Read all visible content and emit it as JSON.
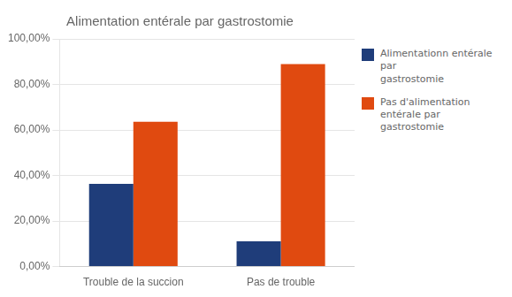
{
  "chart_data": {
    "type": "bar",
    "title": "Alimentation entérale par gastrostomie",
    "categories": [
      "Trouble de la succion",
      "Pas de trouble"
    ],
    "series": [
      {
        "name": "Alimentationn entérale par\ngastrostomie",
        "color": "#1f3d7a",
        "values": [
          0.3636,
          0.1111
        ]
      },
      {
        "name": "Pas d'alimentation\nentérale par gastrostomie",
        "color": "#e04a10",
        "values": [
          0.6364,
          0.8889
        ]
      }
    ],
    "ylim": [
      0,
      1.0
    ],
    "yticks": [
      {
        "value": 0.0,
        "label": "0,00%"
      },
      {
        "value": 0.2,
        "label": "20,00%"
      },
      {
        "value": 0.4,
        "label": "40,00%"
      },
      {
        "value": 0.6,
        "label": "60,00%"
      },
      {
        "value": 0.8,
        "label": "80,00%"
      },
      {
        "value": 1.0,
        "label": "100,00%"
      }
    ],
    "grid": true,
    "legend": "right"
  }
}
